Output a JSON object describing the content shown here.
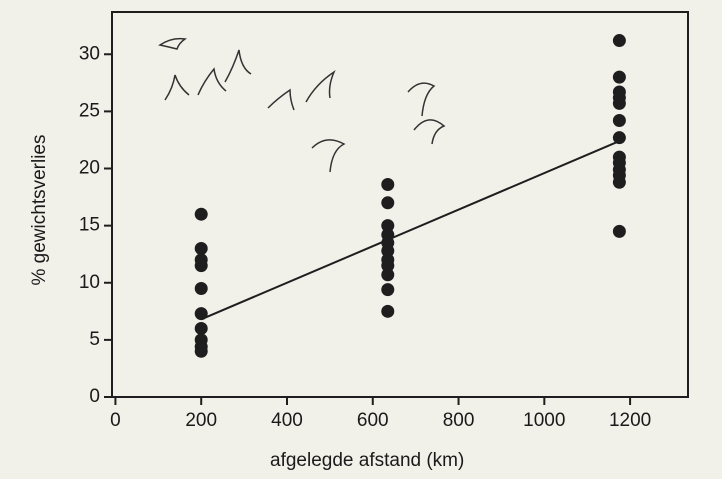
{
  "chart_data": {
    "type": "scatter",
    "x_label": "afgelegde afstand (km)",
    "y_label": "% gewichtsverlies",
    "points": {
      "color": "#1e1e1e",
      "x": [
        200,
        200,
        200,
        200,
        200,
        200,
        200,
        200,
        200,
        200,
        635,
        635,
        635,
        635,
        635,
        635,
        635,
        635,
        635,
        635,
        635,
        1175,
        1175,
        1175,
        1175,
        1175,
        1175,
        1175,
        1175,
        1175,
        1175,
        1175,
        1175,
        1175
      ],
      "y": [
        16,
        13,
        12,
        11.5,
        9.5,
        7.3,
        6,
        5,
        4.4,
        4,
        18.6,
        17,
        15,
        14.2,
        13.5,
        12.8,
        12,
        11.5,
        10.7,
        9.4,
        7.5,
        31.2,
        28,
        26.7,
        26.2,
        25.7,
        24.2,
        22.7,
        21,
        20.5,
        19.9,
        19.4,
        18.8,
        14.5
      ]
    },
    "trend_line": {
      "color": "#1e1e1e",
      "x": [
        200,
        1175
      ],
      "y": [
        6.8,
        22.4
      ]
    },
    "xlim": [
      -8,
      1335
    ],
    "ylim": [
      0,
      33.7
    ],
    "xticks": [
      0,
      200,
      400,
      600,
      800,
      1000,
      1200
    ],
    "yticks": [
      0,
      5,
      10,
      15,
      20,
      25,
      30
    ]
  }
}
